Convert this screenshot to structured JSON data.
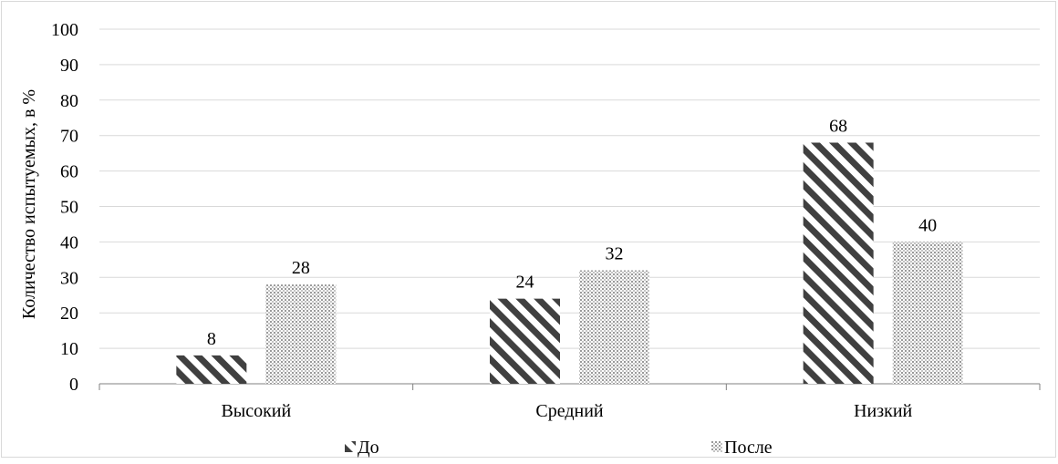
{
  "chart_data": {
    "type": "bar",
    "title": "",
    "xlabel": "",
    "ylabel": "Количество испытуемых, в %",
    "categories": [
      "Высокий",
      "Средний",
      "Низкий"
    ],
    "series": [
      {
        "name": "До",
        "values": [
          8,
          24,
          68
        ],
        "pattern": "diagonal-stripes",
        "color": "#404040"
      },
      {
        "name": "После",
        "values": [
          28,
          32,
          40
        ],
        "pattern": "dotted-grid",
        "color": "#8c8c8c"
      }
    ],
    "ylim": [
      0,
      100
    ],
    "yticks": [
      0,
      10,
      20,
      30,
      40,
      50,
      60,
      70,
      80,
      90,
      100
    ],
    "grid": true,
    "legend_position": "bottom",
    "data_labels": true
  }
}
